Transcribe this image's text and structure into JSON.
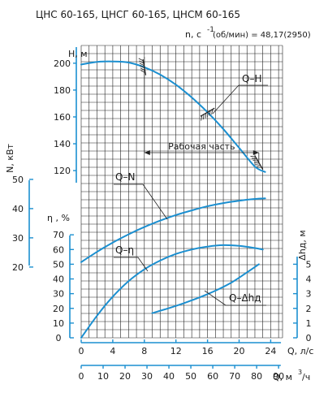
{
  "chart_data": {
    "type": "line",
    "title": "ЦНС 60-165, ЦНСГ 60-165, ЦНСМ 60-165",
    "speed_label": "n, c",
    "speed_exp": "-1",
    "speed_value": "(об/мин) = 48,17(2950)",
    "working_zone_label": "Рабочая часть",
    "xlabel": "Q, л/с",
    "xlabel2": "Q, м",
    "xlabel2_exp": "3",
    "xlabel2_tail": "/ч",
    "xlim": [
      0,
      25.5
    ],
    "xticks": [
      0,
      4,
      8,
      12,
      16,
      20,
      24
    ],
    "xticks2": [
      0,
      10,
      20,
      30,
      40,
      50,
      60,
      70,
      80,
      90
    ],
    "working_zone": [
      8,
      22.5
    ],
    "axes": {
      "H": {
        "label": "Н, м",
        "ticks": [
          120,
          140,
          160,
          180,
          200
        ],
        "ylim": [
          111,
          212
        ]
      },
      "N": {
        "label": "N, кВт",
        "ticks": [
          20,
          30,
          40,
          50
        ],
        "ylim": [
          18.3,
          52.2
        ]
      },
      "eta": {
        "label": "η , %",
        "ticks": [
          0,
          10,
          20,
          30,
          40,
          50,
          60,
          70
        ],
        "ylim": [
          0,
          72.3
        ]
      },
      "dh": {
        "label": "Δhд, м",
        "ticks": [
          0,
          1,
          2,
          3,
          4,
          5
        ],
        "ylim": [
          0,
          5.52
        ]
      }
    },
    "series": [
      {
        "name": "Q–Н",
        "axis": "H",
        "x": [
          0,
          2,
          4,
          6,
          8,
          10,
          12,
          14,
          16,
          18,
          20,
          22,
          23.3
        ],
        "y": [
          199,
          201,
          201.3,
          200.5,
          197,
          191.5,
          184,
          174.5,
          163.5,
          151,
          137,
          123,
          119
        ]
      },
      {
        "name": "Q–N",
        "axis": "N",
        "x": [
          0,
          2,
          4,
          6,
          8,
          10,
          12,
          14,
          16,
          18,
          20,
          22,
          23.3
        ],
        "y": [
          21.7,
          25.2,
          28.4,
          31.2,
          33.7,
          35.9,
          37.8,
          39.4,
          40.8,
          41.9,
          42.7,
          43.3,
          43.5
        ]
      },
      {
        "name": "Q–η",
        "axis": "eta",
        "x": [
          0,
          2,
          4,
          6,
          8,
          10,
          12,
          14,
          16,
          18,
          20,
          22,
          23
        ],
        "y": [
          0,
          15,
          28,
          38.5,
          46.5,
          52.5,
          57,
          60,
          62,
          63,
          62.5,
          61,
          60
        ]
      },
      {
        "name": "Q–Δhд",
        "axis": "dh",
        "x": [
          9,
          11,
          13,
          15,
          17,
          19,
          21,
          22.5
        ],
        "y": [
          1.68,
          2.0,
          2.35,
          2.75,
          3.2,
          3.75,
          4.45,
          5.0
        ]
      }
    ]
  }
}
